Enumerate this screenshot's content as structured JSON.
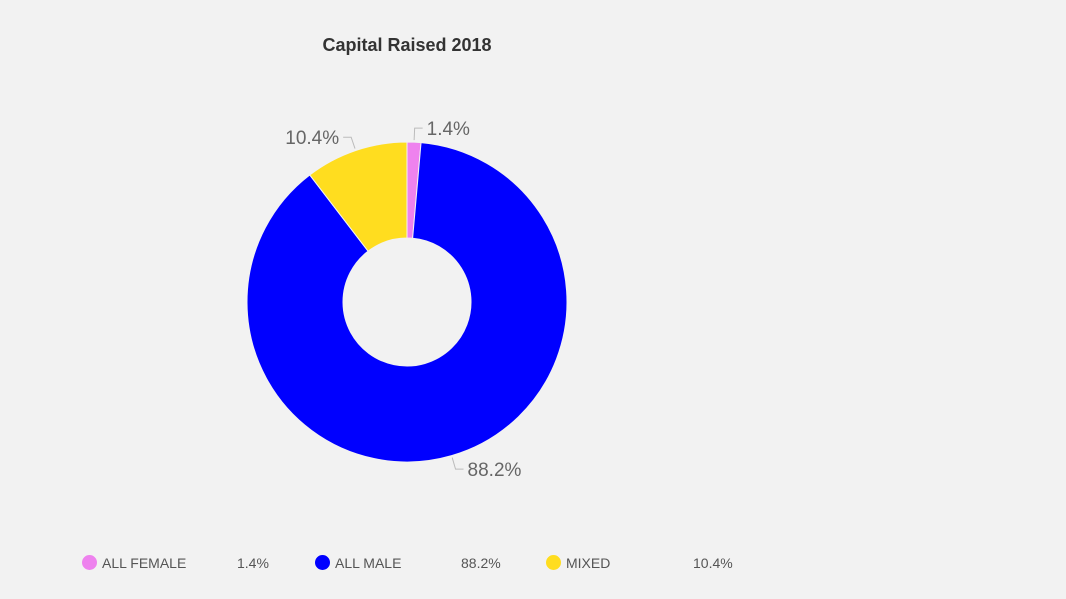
{
  "chart_data": {
    "type": "pie",
    "variant": "donut",
    "title": "Capital Raised 2018",
    "categories": [
      "ALL FEMALE",
      "ALL MALE",
      "MIXED"
    ],
    "values": [
      1.4,
      88.2,
      10.4
    ],
    "unit": "%",
    "data_labels": [
      "1.4%",
      "88.2%",
      "10.4%"
    ],
    "colors": [
      "#ee82ee",
      "#0000ff",
      "#ffdd1f"
    ],
    "legend_position": "bottom",
    "legend": [
      {
        "label": "ALL FEMALE",
        "value": "1.4%",
        "color": "#ee82ee"
      },
      {
        "label": "ALL MALE",
        "value": "88.2%",
        "color": "#0000ff"
      },
      {
        "label": "MIXED",
        "value": "10.4%",
        "color": "#ffdd1f"
      }
    ]
  }
}
